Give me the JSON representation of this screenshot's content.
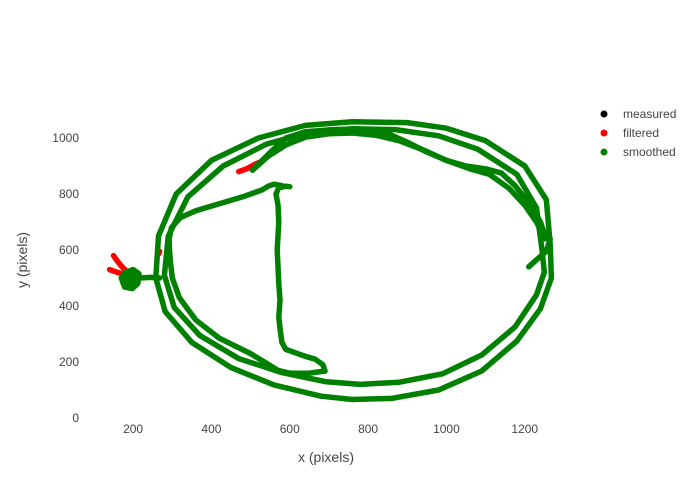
{
  "chart_data": {
    "type": "scatter",
    "xlabel": "x (pixels)",
    "ylabel": "y (pixels)",
    "xlim": [
      90,
      1290
    ],
    "ylim": [
      0,
      1100
    ],
    "x_ticks": [
      200,
      400,
      600,
      800,
      1000,
      1200
    ],
    "y_ticks": [
      0,
      200,
      400,
      600,
      800,
      1000
    ],
    "grid": false,
    "legend": {
      "placement": "top-right"
    },
    "series": [
      {
        "name": "measured",
        "color": "#000000",
        "segments": []
      },
      {
        "name": "filtered",
        "color": "#ff0000",
        "segments": [
          [
            [
              150,
              580
            ],
            [
              160,
              560
            ],
            [
              172,
              540
            ],
            [
              185,
              522
            ]
          ],
          [
            [
              140,
              530
            ],
            [
              160,
              520
            ],
            [
              180,
              512
            ],
            [
              195,
              505
            ]
          ],
          [
            [
              470,
              880
            ],
            [
              490,
              890
            ],
            [
              510,
              905
            ],
            [
              530,
              918
            ]
          ],
          [
            [
              265,
              585
            ],
            [
              268,
              595
            ]
          ]
        ]
      },
      {
        "name": "smoothed",
        "color": "#008000",
        "segments": [
          [
            [
              1265,
              620
            ],
            [
              1255,
              780
            ],
            [
              1200,
              900
            ],
            [
              1100,
              990
            ],
            [
              1000,
              1035
            ],
            [
              900,
              1055
            ],
            [
              760,
              1058
            ],
            [
              640,
              1045
            ],
            [
              520,
              1000
            ],
            [
              400,
              920
            ],
            [
              310,
              800
            ],
            [
              265,
              650
            ],
            [
              258,
              500
            ],
            [
              282,
              380
            ],
            [
              350,
              270
            ],
            [
              450,
              180
            ],
            [
              560,
              118
            ],
            [
              680,
              78
            ],
            [
              760,
              66
            ],
            [
              860,
              70
            ],
            [
              980,
              100
            ],
            [
              1090,
              168
            ],
            [
              1180,
              275
            ],
            [
              1240,
              390
            ],
            [
              1268,
              500
            ],
            [
              1265,
              620
            ]
          ],
          [
            [
              1245,
              590
            ],
            [
              1230,
              750
            ],
            [
              1180,
              870
            ],
            [
              1080,
              960
            ],
            [
              980,
              1008
            ],
            [
              870,
              1030
            ],
            [
              760,
              1033
            ],
            [
              650,
              1020
            ],
            [
              540,
              978
            ],
            [
              430,
              900
            ],
            [
              340,
              790
            ],
            [
              290,
              650
            ],
            [
              280,
              510
            ],
            [
              305,
              395
            ],
            [
              370,
              295
            ],
            [
              470,
              212
            ],
            [
              580,
              162
            ],
            [
              690,
              130
            ],
            [
              780,
              120
            ],
            [
              880,
              128
            ],
            [
              990,
              158
            ],
            [
              1090,
              225
            ],
            [
              1175,
              325
            ],
            [
              1230,
              440
            ],
            [
              1250,
              520
            ],
            [
              1245,
              590
            ]
          ],
          [
            [
              1255,
              640
            ],
            [
              1240,
              700
            ],
            [
              1215,
              760
            ],
            [
              1175,
              830
            ],
            [
              1140,
              875
            ],
            [
              1100,
              890
            ],
            [
              1050,
              900
            ],
            [
              1000,
              920
            ],
            [
              950,
              950
            ],
            [
              900,
              985
            ],
            [
              860,
              1010
            ],
            [
              820,
              1028
            ],
            [
              770,
              1032
            ],
            [
              710,
              1030
            ],
            [
              640,
              1022
            ],
            [
              590,
              1000
            ],
            [
              555,
              955
            ],
            [
              530,
              920
            ],
            [
              505,
              885
            ]
          ],
          [
            [
              505,
              885
            ],
            [
              545,
              935
            ],
            [
              590,
              975
            ],
            [
              640,
              1003
            ],
            [
              700,
              1015
            ],
            [
              760,
              1018
            ],
            [
              820,
              1010
            ],
            [
              880,
              990
            ],
            [
              940,
              958
            ],
            [
              1000,
              920
            ],
            [
              1060,
              890
            ],
            [
              1110,
              870
            ],
            [
              1160,
              820
            ],
            [
              1200,
              760
            ],
            [
              1230,
              700
            ],
            [
              1250,
              640
            ]
          ],
          [
            [
              1210,
              540
            ],
            [
              1230,
              565
            ],
            [
              1255,
              595
            ],
            [
              1265,
              640
            ]
          ],
          [
            [
              580,
              830
            ],
            [
              560,
              835
            ],
            [
              545,
              828
            ],
            [
              530,
              815
            ],
            [
              480,
              790
            ],
            [
              420,
              765
            ],
            [
              360,
              740
            ],
            [
              320,
              715
            ],
            [
              298,
              680
            ],
            [
              292,
              640
            ],
            [
              293,
              600
            ],
            [
              295,
              560
            ],
            [
              300,
              500
            ],
            [
              318,
              430
            ],
            [
              360,
              350
            ],
            [
              420,
              285
            ],
            [
              500,
              230
            ],
            [
              570,
              170
            ],
            [
              600,
              160
            ],
            [
              650,
              160
            ],
            [
              690,
              168
            ]
          ],
          [
            [
              690,
              168
            ],
            [
              685,
              190
            ],
            [
              665,
              210
            ],
            [
              640,
              220
            ],
            [
              610,
              235
            ],
            [
              590,
              245
            ],
            [
              580,
              270
            ],
            [
              575,
              320
            ],
            [
              572,
              360
            ],
            [
              575,
              420
            ],
            [
              572,
              480
            ],
            [
              570,
              540
            ],
            [
              568,
              600
            ],
            [
              570,
              650
            ],
            [
              572,
              700
            ],
            [
              570,
              760
            ],
            [
              565,
              800
            ],
            [
              572,
              822
            ],
            [
              590,
              828
            ],
            [
              600,
              826
            ]
          ],
          [
            [
              185,
              495
            ],
            [
              215,
              500
            ],
            [
              245,
              502
            ],
            [
              268,
              500
            ]
          ],
          [
            [
              170,
              500
            ],
            [
              180,
              520
            ],
            [
              200,
              530
            ],
            [
              215,
              515
            ],
            [
              212,
              480
            ],
            [
              198,
              462
            ],
            [
              178,
              468
            ],
            [
              170,
              500
            ]
          ],
          [
            [
              182,
              510
            ],
            [
              205,
              508
            ],
            [
              212,
              490
            ],
            [
              200,
              475
            ],
            [
              185,
              480
            ],
            [
              182,
              510
            ]
          ]
        ]
      }
    ]
  }
}
